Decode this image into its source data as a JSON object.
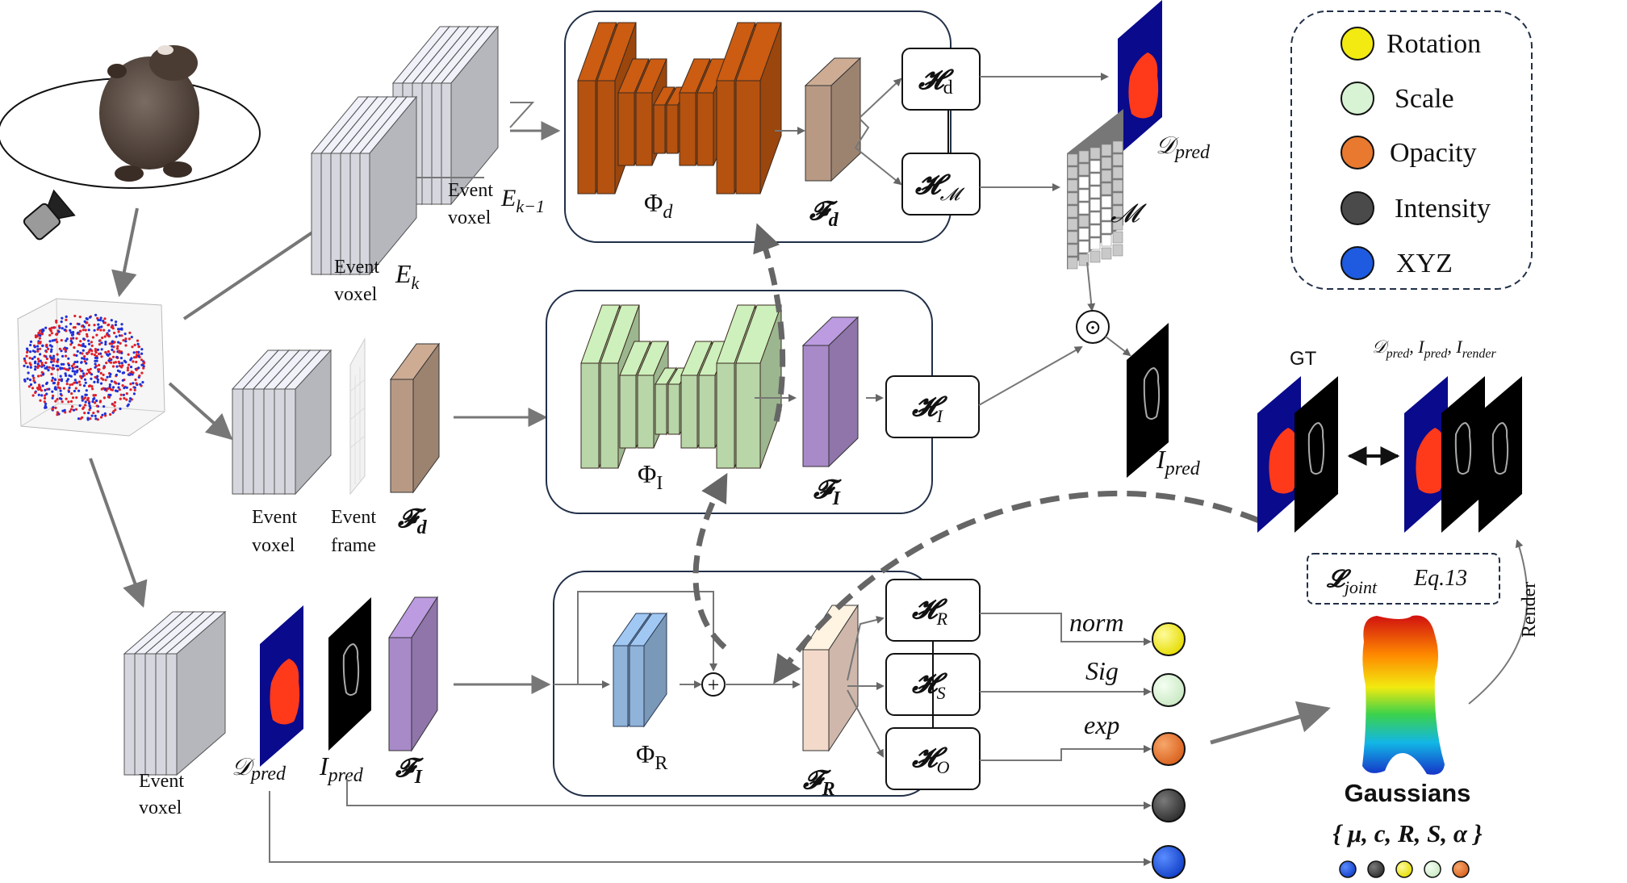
{
  "legend": {
    "items": [
      {
        "label": "Rotation",
        "color": "#f2ea10"
      },
      {
        "label": "Scale",
        "color": "#d8f2d4"
      },
      {
        "label": "Opacity",
        "color": "#e8792e"
      },
      {
        "label": "Intensity",
        "color": "#4a4a4a"
      },
      {
        "label": "XYZ",
        "color": "#1e5be0"
      }
    ]
  },
  "top_branch": {
    "voxel_prev_label1": "Event",
    "voxel_prev_label2": "voxel",
    "voxel_prev_symbol": "E",
    "voxel_prev_sub": "k−1",
    "voxel_cur_label1": "Event",
    "voxel_cur_label2": "voxel",
    "voxel_cur_symbol": "E",
    "voxel_cur_sub": "k",
    "network": "Φ",
    "network_sub": "d",
    "feature": "𝓕",
    "feature_sub": "d",
    "head_depth": "𝓗",
    "head_depth_sub": "d",
    "head_mask": "𝓗",
    "head_mask_sub": "𝓜",
    "depth_out": "𝒟",
    "depth_out_sub": "pred",
    "mask_out": "𝓜"
  },
  "mid_branch": {
    "voxel_label1": "Event",
    "voxel_label2": "voxel",
    "frame_label1": "Event",
    "frame_label2": "frame",
    "feature_in": "𝓕",
    "feature_in_sub": "d",
    "network": "Φ",
    "network_sub": "I",
    "feature": "𝓕",
    "feature_sub": "I",
    "head": "𝓗",
    "head_sub": "I",
    "intensity_out": "I",
    "intensity_out_sub": "pred",
    "multiply_symbol": "⊙"
  },
  "bottom_branch": {
    "voxel_label1": "Event",
    "voxel_label2": "voxel",
    "depth_in": "𝒟",
    "depth_in_sub": "pred",
    "intensity_in": "I",
    "intensity_in_sub": "pred",
    "feature_in": "𝓕",
    "feature_in_sub": "I",
    "network": "Φ",
    "network_sub": "R",
    "plus_symbol": "+",
    "feature": "𝓕",
    "feature_sub": "R",
    "head_r": "𝓗",
    "head_r_sub": "R",
    "head_s": "𝓗",
    "head_s_sub": "S",
    "head_o": "𝓗",
    "head_o_sub": "O",
    "act_norm": "norm",
    "act_sig": "Sig",
    "act_exp": "exp"
  },
  "right_panel": {
    "gt_label": "GT",
    "compare_label": "𝒟",
    "compare_sub1": "pred",
    "compare_mid": ", I",
    "compare_sub2": "pred",
    "compare_mid2": ", I",
    "compare_sub3": "render",
    "loss_symbol": "𝓛",
    "loss_sub": "joint",
    "loss_eq": "Eq.13",
    "render_label": "Render",
    "gaussians_title": "Gaussians",
    "gaussians_params": "{ μ,  c,  R,  S,  α }"
  },
  "colors": {
    "orange_net": "#b5520f",
    "green_net": "#b8d6a8",
    "blue_net": "#8fb3d9",
    "purple_feat": "#a88ac8",
    "tan_feat": "#b89a84",
    "pink_feat": "#f3d9c9",
    "voxel_fill": "#d6d7de",
    "depth_blue": "#0a0a8c",
    "depth_red": "#ff3a1a"
  }
}
